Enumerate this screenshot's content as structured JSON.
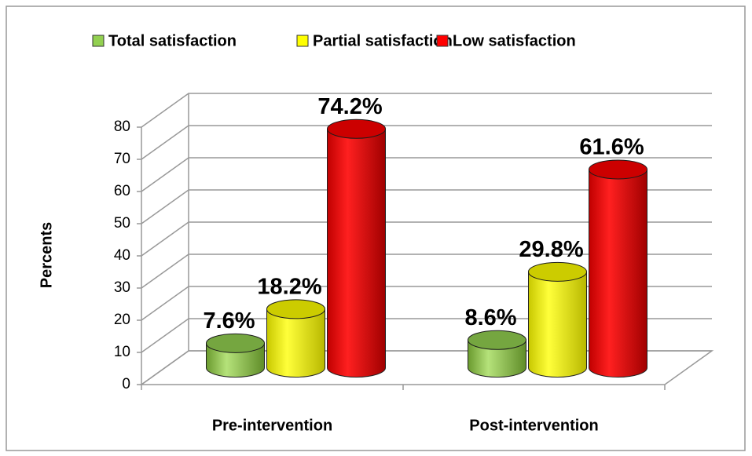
{
  "chart_data": {
    "type": "bar3d",
    "y_label": "Percents",
    "categories": [
      "Pre-intervention",
      "Post-intervention"
    ],
    "series": [
      {
        "name": "Total satisfaction",
        "color": "#92d050",
        "values": [
          7.6,
          8.6
        ],
        "value_labels": [
          "7.6%",
          "8.6%"
        ]
      },
      {
        "name": "Partial satisfaction",
        "color": "#ffff00",
        "values": [
          18.2,
          29.8
        ],
        "value_labels": [
          "18.2%",
          "29.8%"
        ]
      },
      {
        "name": "Low satisfaction",
        "color": "#ff0000",
        "values": [
          74.2,
          61.6
        ],
        "value_labels": [
          "74.2%",
          "61.6%"
        ]
      }
    ],
    "ylim": [
      0,
      80
    ],
    "yticks": [
      0,
      10,
      20,
      30,
      40,
      50,
      60,
      70,
      80
    ],
    "grid": true,
    "legend": "top"
  }
}
